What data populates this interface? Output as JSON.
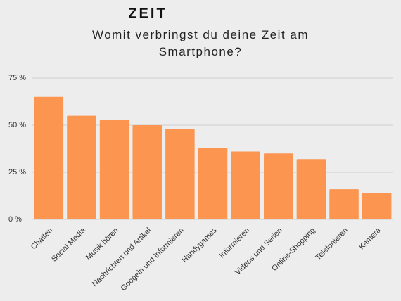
{
  "chart_data": {
    "type": "bar",
    "title": "ZEIT",
    "subtitle": "Womit verbringst du deine Zeit am Smartphone?",
    "categories": [
      "Chatten",
      "Social Media",
      "Musik hören",
      "Nachrichten und Artikel",
      "Googeln und Informieren",
      "Handygames",
      "Informieren",
      "Videos und Serien",
      "Online-Shopping",
      "Telefonieren",
      "Kamera"
    ],
    "values": [
      65,
      55,
      53,
      50,
      48,
      38,
      36,
      35,
      32,
      16,
      14
    ],
    "color": "#fb9550",
    "ylim": [
      0,
      75
    ],
    "yticks": [
      {
        "value": 0,
        "label": "0 %"
      },
      {
        "value": 25,
        "label": "25 %"
      },
      {
        "value": 50,
        "label": "50 %"
      },
      {
        "value": 75,
        "label": "75 %"
      }
    ],
    "grid": true
  }
}
